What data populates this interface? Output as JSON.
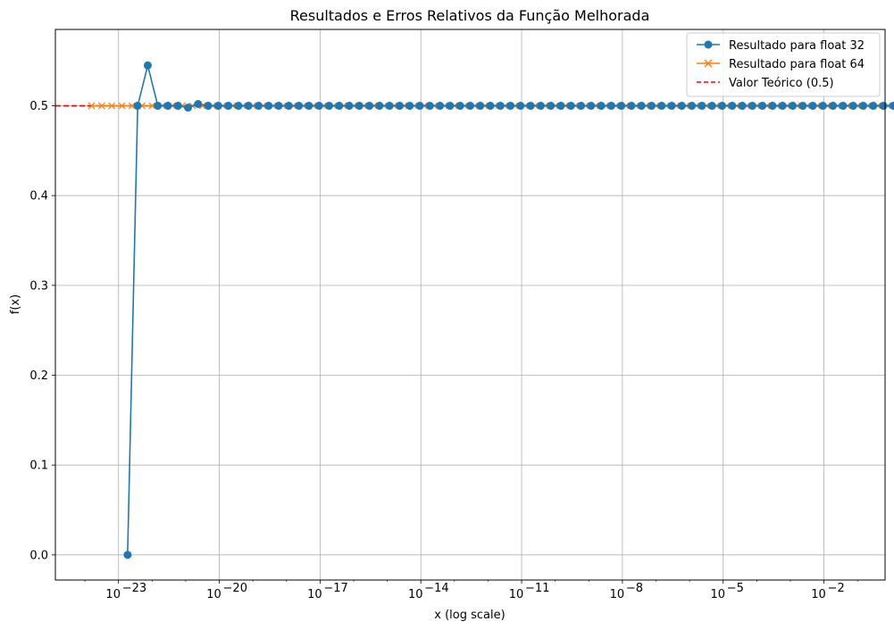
{
  "chart_data": {
    "type": "line",
    "title": "Resultados e Erros Relativos da Função Melhorada",
    "xlabel": "x (log scale)",
    "ylabel": "f(x)",
    "x_scale": "log",
    "x_range_log10": [
      -24.88,
      -0.18
    ],
    "ylim": [
      -0.028,
      0.585
    ],
    "x_ticks_log10": [
      -23,
      -20,
      -17,
      -14,
      -11,
      -8,
      -5,
      -2
    ],
    "x_tick_labels": [
      "10",
      "10",
      "10",
      "10",
      "10",
      "10",
      "10",
      "10"
    ],
    "x_tick_exponents": [
      "−23",
      "−20",
      "−17",
      "−14",
      "−11",
      "−8",
      "−5",
      "−2"
    ],
    "y_ticks": [
      0.0,
      0.1,
      0.2,
      0.3,
      0.4,
      0.5
    ],
    "y_tick_labels": [
      "0.0",
      "0.1",
      "0.2",
      "0.3",
      "0.4",
      "0.5"
    ],
    "grid": true,
    "legend_position": "top-right",
    "series": [
      {
        "name": "Resultado para float 32",
        "color": "#1f77b4",
        "marker": "circle",
        "x_log10_start": -22.73,
        "x_log10_step": 0.3,
        "y": [
          0.0,
          0.5,
          0.545,
          0.5,
          0.5,
          0.5,
          0.498,
          0.502,
          0.5,
          0.5,
          0.5,
          0.5,
          0.5,
          0.5,
          0.5,
          0.5,
          0.5,
          0.5,
          0.5,
          0.5,
          0.5,
          0.5,
          0.5,
          0.5,
          0.5,
          0.5,
          0.5,
          0.5,
          0.5,
          0.5,
          0.5,
          0.5,
          0.5,
          0.5,
          0.5,
          0.5,
          0.5,
          0.5,
          0.5,
          0.5,
          0.5,
          0.5,
          0.5,
          0.5,
          0.5,
          0.5,
          0.5,
          0.5,
          0.5,
          0.5,
          0.5,
          0.5,
          0.5,
          0.5,
          0.5,
          0.5,
          0.5,
          0.5,
          0.5,
          0.5,
          0.5,
          0.5,
          0.5,
          0.5,
          0.5,
          0.5,
          0.5,
          0.5,
          0.5,
          0.5,
          0.5,
          0.5,
          0.5,
          0.5,
          0.5,
          0.5,
          0.5
        ]
      },
      {
        "name": "Resultado para float 64",
        "color": "#ff7f0e",
        "marker": "x",
        "x_log10_start": -23.8,
        "x_log10_step": 0.3,
        "y": [
          0.5,
          0.5,
          0.5,
          0.5,
          0.5,
          0.5,
          0.5,
          0.5,
          0.5,
          0.5,
          0.5,
          0.5,
          0.5,
          0.5,
          0.5,
          0.5,
          0.5,
          0.5,
          0.5,
          0.5,
          0.5,
          0.5,
          0.5,
          0.5,
          0.5,
          0.5,
          0.5,
          0.5,
          0.5,
          0.5,
          0.5,
          0.5,
          0.5,
          0.5,
          0.5,
          0.5,
          0.5,
          0.5,
          0.5,
          0.5,
          0.5,
          0.5,
          0.5,
          0.5,
          0.5,
          0.5,
          0.5,
          0.5,
          0.5,
          0.5,
          0.5,
          0.5,
          0.5,
          0.5,
          0.5,
          0.5,
          0.5,
          0.5,
          0.5,
          0.5,
          0.5,
          0.5,
          0.5,
          0.5,
          0.5,
          0.5,
          0.5,
          0.5,
          0.5,
          0.5,
          0.5,
          0.5,
          0.5,
          0.5,
          0.5,
          0.5,
          0.5,
          0.5,
          0.5,
          0.5,
          0.5
        ]
      },
      {
        "name": "Valor Teórico (0.5)",
        "color": "#ff0000",
        "style": "dashed",
        "y_constant": 0.5
      }
    ]
  }
}
